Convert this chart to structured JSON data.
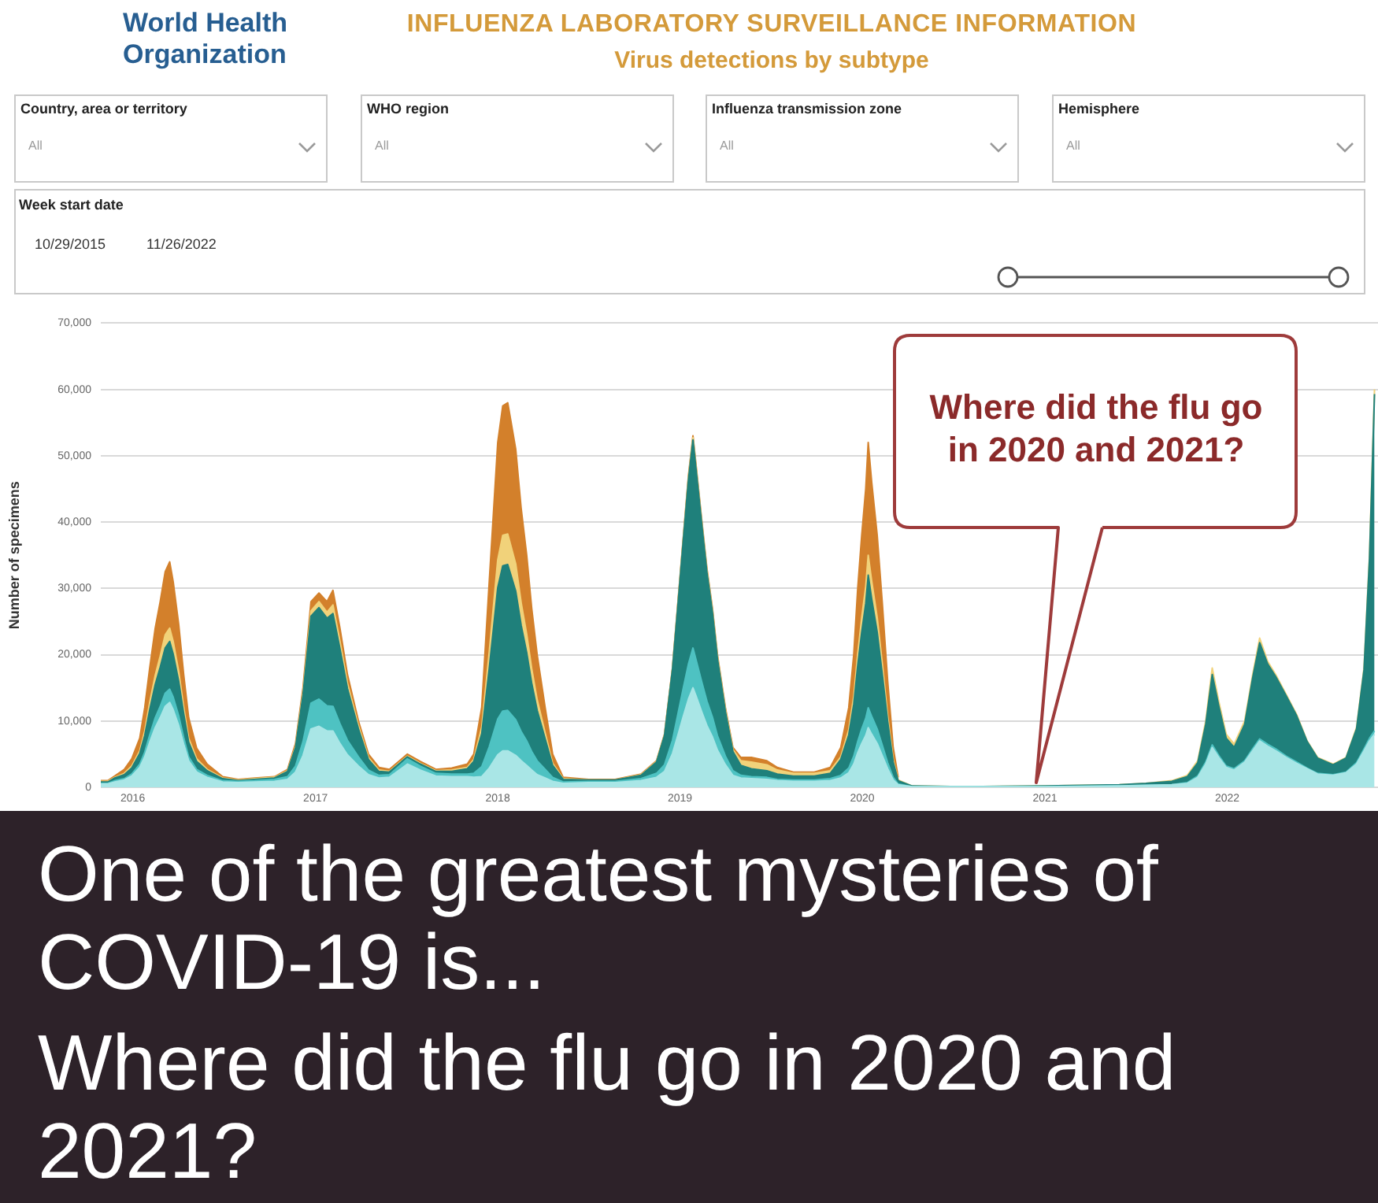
{
  "chart_data": {
    "type": "area",
    "title": "INFLUENZA LABORATORY SURVEILLANCE INFORMATION",
    "subtitle": "Virus detections by subtype",
    "ylabel": "Number of specimens",
    "annotations": [
      "World Health Organization",
      "Country, area or territory",
      "All",
      "WHO region",
      "All",
      "Influenza transmission zone",
      "All",
      "Hemisphere",
      "All",
      "Week start date",
      "10/29/2015",
      "11/26/2022",
      "Where did the flu go in 2020 and 2021?",
      "One of the greatest mysteries of COVID-19 is...",
      "Where did the flu go in 2020 and 2021?"
    ],
    "x": [
      "2015-10-29",
      "2015-11-12",
      "2015-11-26",
      "2015-12-15",
      "2015-12-30",
      "2016-01-15",
      "2016-01-25",
      "2016-02-04",
      "2016-02-15",
      "2016-02-25",
      "2016-03-06",
      "2016-03-15",
      "2016-03-22",
      "2016-04-02",
      "2016-04-12",
      "2016-04-22",
      "2016-05-08",
      "2016-05-29",
      "2016-06-29",
      "2016-07-30",
      "2016-09-01",
      "2016-10-11",
      "2016-11-06",
      "2016-11-22",
      "2016-12-07",
      "2016-12-23",
      "2017-01-08",
      "2017-01-24",
      "2017-02-05",
      "2017-02-19",
      "2017-03-06",
      "2017-03-28",
      "2017-04-17",
      "2017-05-08",
      "2017-05-29",
      "2017-07-04",
      "2017-07-30",
      "2017-08-30",
      "2017-10-01",
      "2017-11-01",
      "2017-11-14",
      "2017-11-30",
      "2017-12-15",
      "2018-01-01",
      "2018-01-11",
      "2018-01-21",
      "2018-02-06",
      "2018-02-17",
      "2018-02-28",
      "2018-03-10",
      "2018-03-21",
      "2018-04-06",
      "2018-04-21",
      "2018-05-12",
      "2018-07-02",
      "2018-08-24",
      "2018-10-15",
      "2018-11-15",
      "2018-12-01",
      "2018-12-17",
      "2018-12-28",
      "2019-01-08",
      "2019-01-18",
      "2019-01-27",
      "2019-02-03",
      "2019-02-14",
      "2019-02-24",
      "2019-03-07",
      "2019-03-17",
      "2019-04-02",
      "2019-04-17",
      "2019-05-03",
      "2019-05-24",
      "2019-06-24",
      "2019-07-15",
      "2019-08-16",
      "2019-09-27",
      "2019-10-29",
      "2019-11-19",
      "2019-12-05",
      "2019-12-15",
      "2019-12-23",
      "2019-12-31",
      "2020-01-08",
      "2020-01-13",
      "2020-01-20",
      "2020-01-31",
      "2020-02-10",
      "2020-02-21",
      "2020-03-03",
      "2020-03-13",
      "2020-04-10",
      "2020-07-22",
      "2021-01-01",
      "2021-05-30",
      "2021-07-22",
      "2021-09-12",
      "2021-10-13",
      "2021-11-03",
      "2021-11-19",
      "2021-12-02",
      "2021-12-15",
      "2021-12-30",
      "2022-01-15",
      "2022-02-05",
      "2022-02-21",
      "2022-03-07",
      "2022-03-23",
      "2022-04-08",
      "2022-04-29",
      "2022-05-20",
      "2022-06-10",
      "2022-07-01",
      "2022-08-01",
      "2022-08-27",
      "2022-09-17",
      "2022-10-02",
      "2022-10-13",
      "2022-10-23"
    ],
    "series": [
      {
        "color": "#a9e6e6",
        "values": [
          500,
          500,
          800,
          1100,
          1700,
          3000,
          4600,
          6800,
          9000,
          10500,
          12200,
          12800,
          11700,
          9300,
          6500,
          4000,
          2300,
          1500,
          800,
          700,
          800,
          900,
          1200,
          2300,
          4800,
          8800,
          9200,
          8500,
          8500,
          6600,
          4900,
          3200,
          1900,
          1400,
          1500,
          3500,
          2600,
          1700,
          1600,
          1600,
          1500,
          1600,
          2900,
          4900,
          5500,
          5500,
          4800,
          4000,
          3300,
          2600,
          1900,
          1400,
          900,
          600,
          700,
          700,
          1000,
          1500,
          2400,
          5100,
          7900,
          10800,
          13300,
          15000,
          13600,
          11300,
          9300,
          7600,
          5600,
          3400,
          1800,
          1400,
          1300,
          1200,
          1000,
          900,
          900,
          1000,
          1400,
          2200,
          3500,
          5200,
          6600,
          7800,
          9000,
          8000,
          6600,
          4800,
          2800,
          1100,
          400,
          100,
          100,
          100,
          200,
          300,
          400,
          600,
          1500,
          3500,
          6000,
          4500,
          3000,
          2600,
          3800,
          5500,
          7000,
          6200,
          5500,
          4500,
          3600,
          2800,
          2000,
          1800,
          2200,
          3500,
          5500,
          7000,
          8000
        ]
      },
      {
        "color": "#4ec2c2",
        "values": [
          100,
          100,
          200,
          200,
          300,
          500,
          700,
          1100,
          1500,
          1700,
          2000,
          2000,
          1900,
          1500,
          1000,
          600,
          400,
          300,
          200,
          200,
          200,
          300,
          400,
          900,
          2100,
          3900,
          4100,
          3800,
          3700,
          3000,
          2200,
          1400,
          700,
          400,
          400,
          800,
          600,
          400,
          400,
          400,
          600,
          1500,
          3200,
          5400,
          6000,
          6100,
          5400,
          4400,
          3700,
          2800,
          2100,
          1300,
          600,
          200,
          200,
          200,
          300,
          600,
          1000,
          2000,
          3200,
          4300,
          5300,
          6000,
          5400,
          4500,
          3700,
          3000,
          2200,
          1300,
          700,
          400,
          300,
          300,
          200,
          200,
          200,
          300,
          400,
          700,
          1200,
          1700,
          2200,
          2600,
          3000,
          2700,
          2200,
          1600,
          900,
          400,
          100,
          0,
          0,
          0,
          0,
          0,
          0,
          100,
          200,
          300,
          400,
          300,
          200,
          200,
          200,
          300,
          300,
          300,
          300,
          200,
          200,
          100,
          100,
          100,
          100,
          200,
          300,
          400,
          500
        ]
      },
      {
        "color": "#1f807b",
        "values": [
          200,
          200,
          400,
          600,
          900,
          1600,
          2500,
          3800,
          5000,
          5900,
          6800,
          7200,
          6500,
          5200,
          3600,
          2200,
          1200,
          700,
          300,
          100,
          200,
          200,
          800,
          2800,
          7000,
          13100,
          13800,
          13200,
          14000,
          11300,
          7800,
          4200,
          1600,
          600,
          400,
          300,
          300,
          300,
          400,
          800,
          1800,
          5000,
          11800,
          19800,
          21900,
          22000,
          19400,
          16000,
          13300,
          10300,
          7600,
          4600,
          1800,
          400,
          200,
          200,
          500,
          1700,
          4400,
          10700,
          16500,
          22500,
          27800,
          31400,
          28400,
          23600,
          19400,
          15800,
          11600,
          6700,
          2900,
          1500,
          1200,
          1000,
          800,
          600,
          600,
          800,
          2400,
          5000,
          7800,
          11500,
          14600,
          17300,
          20000,
          17700,
          14600,
          10800,
          6200,
          2300,
          500,
          100,
          0,
          100,
          200,
          300,
          500,
          900,
          2000,
          5700,
          10600,
          7500,
          4200,
          3200,
          5500,
          10700,
          14500,
          12100,
          10900,
          9100,
          7000,
          4000,
          2300,
          1500,
          2100,
          5100,
          11900,
          27100,
          50800
        ]
      },
      {
        "color": "#f1d27a",
        "values": [
          100,
          100,
          100,
          200,
          300,
          400,
          700,
          1100,
          1400,
          1700,
          2000,
          2000,
          1900,
          1500,
          1000,
          600,
          400,
          200,
          100,
          100,
          100,
          100,
          100,
          200,
          400,
          800,
          900,
          900,
          1300,
          1100,
          800,
          500,
          300,
          200,
          100,
          100,
          100,
          100,
          200,
          200,
          300,
          1000,
          2500,
          4200,
          4600,
          4600,
          4100,
          3400,
          2800,
          2200,
          1600,
          900,
          300,
          100,
          0,
          0,
          100,
          100,
          100,
          100,
          200,
          200,
          300,
          300,
          300,
          300,
          300,
          300,
          300,
          300,
          300,
          700,
          1000,
          900,
          600,
          400,
          400,
          400,
          400,
          800,
          1200,
          1700,
          2200,
          2600,
          3000,
          2700,
          2200,
          1600,
          900,
          400,
          100,
          0,
          0,
          0,
          0,
          0,
          100,
          200,
          300,
          500,
          1000,
          700,
          600,
          500,
          500,
          500,
          700,
          400,
          300,
          200,
          200,
          100,
          100,
          100,
          100,
          200,
          300,
          500,
          700
        ]
      },
      {
        "color": "#d3802b",
        "values": [
          100,
          100,
          200,
          600,
          1100,
          1900,
          3500,
          5200,
          7100,
          8200,
          9500,
          10000,
          9000,
          7100,
          4900,
          3100,
          1600,
          800,
          200,
          100,
          100,
          100,
          200,
          400,
          700,
          1400,
          1300,
          1600,
          2200,
          2000,
          1300,
          700,
          500,
          400,
          300,
          300,
          300,
          200,
          300,
          500,
          800,
          3000,
          10600,
          17700,
          19500,
          19800,
          17300,
          14200,
          11900,
          9100,
          6800,
          3800,
          1400,
          200,
          100,
          100,
          100,
          100,
          100,
          100,
          200,
          200,
          300,
          300,
          300,
          300,
          300,
          300,
          300,
          300,
          300,
          500,
          700,
          600,
          400,
          200,
          200,
          500,
          1400,
          3300,
          6300,
          9900,
          12400,
          14700,
          17000,
          14900,
          12400,
          9200,
          5200,
          1800,
          400,
          null,
          null,
          null,
          null,
          null,
          null,
          null,
          null,
          null,
          null,
          null,
          null,
          null,
          null,
          null,
          null,
          null,
          null,
          null,
          null,
          null,
          null,
          null,
          null,
          null,
          null,
          null,
          null
        ]
      }
    ],
    "stacked": true,
    "xlim": [
      "2015-10-29",
      "2022-10-30"
    ],
    "xticks": [
      "2016",
      "2017",
      "2018",
      "2019",
      "2020",
      "2021",
      "2022"
    ],
    "ylim": [
      0,
      70000
    ],
    "yticks": [
      0,
      {
        "value": 10000,
        "label": "10,000"
      },
      {
        "value": 20000,
        "label": "20,000"
      },
      {
        "value": 30000,
        "label": "30,000"
      },
      {
        "value": 40000,
        "label": "40,000"
      },
      {
        "value": 50000,
        "label": "50,000"
      },
      {
        "value": 60000,
        "label": "60,000"
      },
      {
        "value": 70000,
        "label": "70,000"
      }
    ],
    "grid": "y",
    "marker": "none"
  }
}
